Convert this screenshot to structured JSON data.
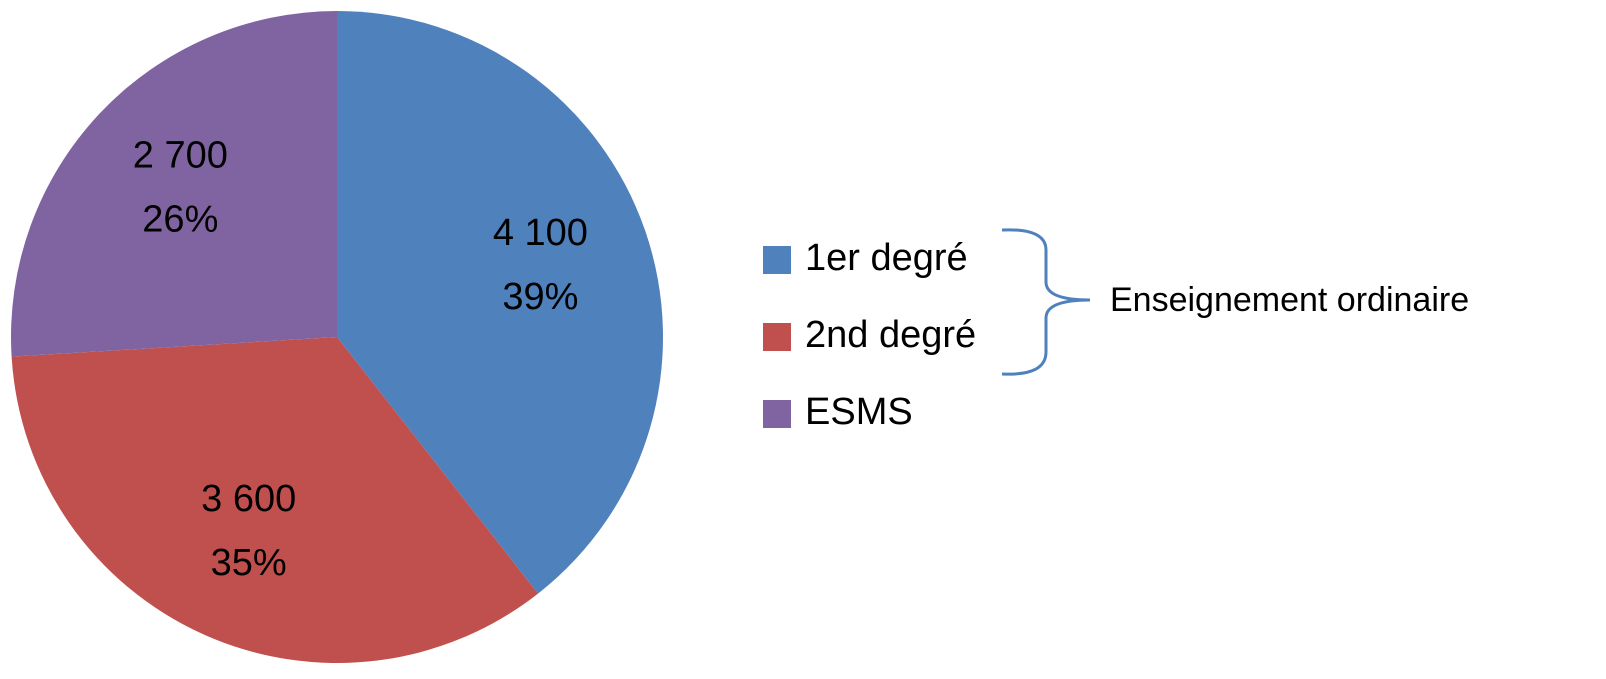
{
  "chart_data": {
    "type": "pie",
    "categories": [
      "1er degré",
      "2nd degré",
      "ESMS"
    ],
    "values": [
      4100,
      3600,
      2700
    ],
    "value_labels": [
      "4 100",
      "3 600",
      "2 700"
    ],
    "percentages": [
      39,
      35,
      26
    ],
    "percentage_labels": [
      "39%",
      "35%",
      "26%"
    ],
    "colors": [
      "#4f81bd",
      "#c0504d",
      "#8064a2"
    ],
    "legend": "right",
    "annotation": "Enseignement ordinaire"
  }
}
